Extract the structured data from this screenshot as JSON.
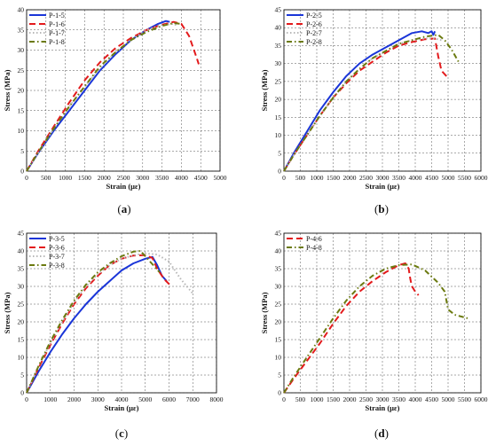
{
  "chart_data": [
    {
      "type": "line",
      "panel_label": "(a)",
      "xlabel": "Strain (με)",
      "ylabel": "Stress (MPa)",
      "xlim": [
        0,
        5000
      ],
      "ylim": [
        0,
        40
      ],
      "xticks": [
        0,
        500,
        1000,
        1500,
        2000,
        2500,
        3000,
        3500,
        4000,
        4500,
        5000
      ],
      "yticks": [
        0,
        5,
        10,
        15,
        20,
        25,
        30,
        35,
        40
      ],
      "grid": true,
      "legend_position": "top-left",
      "series": [
        {
          "name": "P-1-5",
          "color": "#1a35d8",
          "style": "solid",
          "x": [
            0,
            300,
            700,
            1100,
            1500,
            1900,
            2300,
            2700,
            3100,
            3400,
            3600,
            3700
          ],
          "y": [
            0,
            4.5,
            10,
            15,
            20,
            25,
            29,
            32.5,
            35,
            36.5,
            37.2,
            37
          ]
        },
        {
          "name": "P-1-6",
          "color": "#e31a1c",
          "style": "dashed",
          "x": [
            0,
            300,
            700,
            1100,
            1500,
            1900,
            2300,
            2700,
            3100,
            3500,
            3800,
            4000,
            4200,
            4400,
            4450
          ],
          "y": [
            0,
            5,
            11,
            17,
            22.5,
            27,
            30.5,
            33,
            35,
            36.3,
            37,
            36.5,
            33.5,
            28,
            26.5
          ]
        },
        {
          "name": "P-1-7",
          "color": "#b8b8b8",
          "style": "dotted",
          "x": [
            0,
            300,
            700,
            1100,
            1500,
            1900,
            2300,
            2700,
            3100,
            3500,
            3800,
            3900
          ],
          "y": [
            0,
            4.5,
            10.5,
            16,
            21,
            25.5,
            29.5,
            32.5,
            35,
            36.2,
            36.5,
            36
          ]
        },
        {
          "name": "P-1-8",
          "color": "#6b7a10",
          "style": "dashdot",
          "x": [
            0,
            300,
            700,
            1100,
            1500,
            1900,
            2300,
            2700,
            3100,
            3500,
            3800,
            4000
          ],
          "y": [
            0,
            4.7,
            10.5,
            16,
            21,
            26,
            29.5,
            32.5,
            34.5,
            36,
            36.7,
            36.5
          ]
        }
      ]
    },
    {
      "type": "line",
      "panel_label": "(b)",
      "xlabel": "Strain (με)",
      "ylabel": "Stress (MPa)",
      "xlim": [
        0,
        6000
      ],
      "ylim": [
        0,
        45
      ],
      "xticks": [
        0,
        500,
        1000,
        1500,
        2000,
        2500,
        3000,
        3500,
        4000,
        4500,
        5000,
        5500,
        6000
      ],
      "yticks": [
        0,
        5,
        10,
        15,
        20,
        25,
        30,
        35,
        40,
        45
      ],
      "grid": true,
      "legend_position": "top-left",
      "series": [
        {
          "name": "P-2-5",
          "color": "#1a35d8",
          "style": "solid",
          "x": [
            0,
            300,
            700,
            1100,
            1500,
            1900,
            2300,
            2700,
            3100,
            3500,
            3900,
            4200,
            4400,
            4500,
            4550,
            4600
          ],
          "y": [
            0,
            5,
            11,
            17,
            22,
            26.5,
            30,
            32.5,
            34.5,
            36.5,
            38.5,
            39,
            38.5,
            39,
            38,
            39
          ]
        },
        {
          "name": "P-2-6",
          "color": "#e31a1c",
          "style": "dashed",
          "x": [
            0,
            300,
            700,
            1100,
            1500,
            1900,
            2300,
            2700,
            3100,
            3500,
            3900,
            4300,
            4600,
            4700,
            4800,
            5000
          ],
          "y": [
            0,
            4.5,
            10,
            15.5,
            20.5,
            24.5,
            28,
            30.5,
            33,
            35,
            36,
            36.8,
            37,
            32,
            28,
            26
          ]
        },
        {
          "name": "P-2-7",
          "color": "#b8b8b8",
          "style": "dotted",
          "x": [
            0,
            300,
            700,
            1100,
            1500,
            1900,
            2300,
            2700,
            3100,
            3500,
            3900,
            4300,
            4600,
            4800
          ],
          "y": [
            0,
            4.5,
            10,
            15.5,
            20.5,
            25,
            28.5,
            31.5,
            33.5,
            35.5,
            36.5,
            37,
            37,
            36.5
          ]
        },
        {
          "name": "P-2-8",
          "color": "#6b7a10",
          "style": "dashdot",
          "x": [
            0,
            300,
            700,
            1100,
            1500,
            1900,
            2300,
            2700,
            3100,
            3500,
            3900,
            4300,
            4700,
            4900,
            5100,
            5350
          ],
          "y": [
            0,
            4.5,
            10,
            15.5,
            20.5,
            25,
            28.5,
            31.5,
            33.5,
            35.5,
            36.5,
            37.5,
            38,
            36.5,
            34,
            30
          ]
        }
      ]
    },
    {
      "type": "line",
      "panel_label": "(c)",
      "xlabel": "Strain (με)",
      "ylabel": "Stress (MPa)",
      "xlim": [
        0,
        8000
      ],
      "ylim": [
        0,
        45
      ],
      "xticks": [
        0,
        1000,
        2000,
        3000,
        4000,
        5000,
        6000,
        7000,
        8000
      ],
      "yticks": [
        0,
        5,
        10,
        15,
        20,
        25,
        30,
        35,
        40,
        45
      ],
      "grid": true,
      "legend_position": "top-left",
      "series": [
        {
          "name": "P-3-5",
          "color": "#1a35d8",
          "style": "solid",
          "x": [
            0,
            500,
            1000,
            1500,
            2000,
            2500,
            3000,
            3500,
            4000,
            4500,
            5000,
            5300,
            5500,
            5700,
            5900
          ],
          "y": [
            0,
            6,
            11.5,
            16.5,
            21,
            25,
            28.5,
            31.5,
            34.5,
            36.5,
            37.8,
            38.3,
            36,
            33,
            31.5
          ]
        },
        {
          "name": "P-3-6",
          "color": "#e31a1c",
          "style": "dashed",
          "x": [
            0,
            500,
            1000,
            1500,
            2000,
            2500,
            3000,
            3500,
            4000,
            4500,
            5000,
            5300,
            5500,
            5800,
            6100
          ],
          "y": [
            0,
            7,
            13.5,
            19.5,
            25,
            29.5,
            33,
            36,
            37.8,
            38.7,
            38.8,
            38,
            35,
            32,
            30
          ]
        },
        {
          "name": "P-3-7",
          "color": "#b8b8b8",
          "style": "dotted",
          "x": [
            0,
            500,
            1000,
            1500,
            2000,
            2500,
            3000,
            3500,
            4000,
            4500,
            5000,
            5500,
            6000,
            6500,
            7000
          ],
          "y": [
            0,
            7.5,
            14,
            20,
            25.5,
            30,
            33.5,
            36,
            37.8,
            38.8,
            39.3,
            39,
            37,
            32,
            28
          ]
        },
        {
          "name": "P-3-8",
          "color": "#6b7a10",
          "style": "dashdot",
          "x": [
            0,
            500,
            1000,
            1500,
            2000,
            2500,
            3000,
            3500,
            4000,
            4500,
            4800,
            5200,
            5600
          ],
          "y": [
            0,
            7.5,
            14.5,
            20.5,
            26,
            30.5,
            34,
            36.5,
            38.5,
            39.8,
            40,
            37,
            34
          ]
        }
      ]
    },
    {
      "type": "line",
      "panel_label": "(d)",
      "xlabel": "Strain (με)",
      "ylabel": "Stress (MPa)",
      "xlim": [
        0,
        6000
      ],
      "ylim": [
        0,
        45
      ],
      "xticks": [
        0,
        500,
        1000,
        1500,
        2000,
        2500,
        3000,
        3500,
        4000,
        4500,
        5000,
        5500,
        6000
      ],
      "yticks": [
        0,
        5,
        10,
        15,
        20,
        25,
        30,
        35,
        40,
        45
      ],
      "grid": true,
      "legend_position": "top-left",
      "series": [
        {
          "name": "P-4-6",
          "color": "#e31a1c",
          "style": "dashed",
          "x": [
            0,
            300,
            700,
            1100,
            1500,
            1900,
            2300,
            2700,
            3100,
            3500,
            3700,
            3800,
            3850,
            3900,
            4000,
            4100
          ],
          "y": [
            0,
            4,
            9,
            14,
            19.5,
            24.5,
            28.5,
            31.5,
            34,
            36,
            36.5,
            35,
            32,
            30,
            28.5,
            27.5
          ]
        },
        {
          "name": "P-4-8",
          "color": "#6b7a10",
          "style": "dashdot",
          "x": [
            0,
            300,
            700,
            1100,
            1500,
            1900,
            2300,
            2700,
            3100,
            3500,
            3900,
            4300,
            4700,
            4900,
            5000,
            5200,
            5600
          ],
          "y": [
            0,
            4.5,
            10,
            15.5,
            21,
            26,
            30,
            33,
            35,
            36,
            36.2,
            34.5,
            31,
            28.5,
            23.5,
            22,
            21
          ]
        }
      ]
    }
  ]
}
